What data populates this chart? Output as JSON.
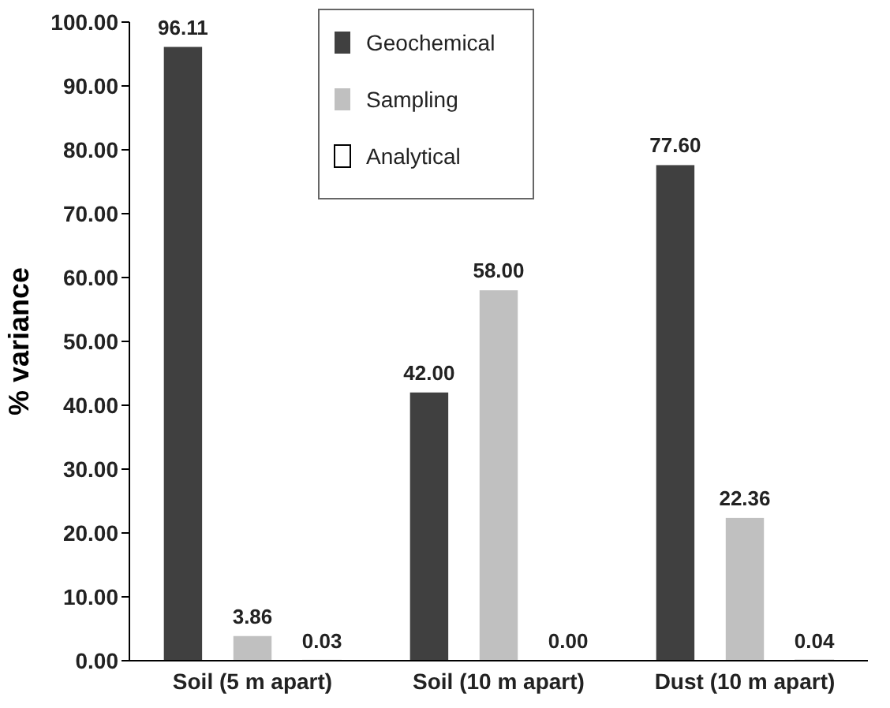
{
  "chart_data": {
    "type": "bar",
    "ylabel": "% variance",
    "categories": [
      "Soil (5 m apart)",
      "Soil (10 m apart)",
      "Dust (10 m apart)"
    ],
    "series": [
      {
        "name": "Geochemical",
        "color": "#404040",
        "values": [
          96.11,
          42.0,
          77.6
        ],
        "value_labels": [
          "96.11",
          "42.00",
          "77.60"
        ]
      },
      {
        "name": "Sampling",
        "color": "#c0c0c0",
        "values": [
          3.86,
          58.0,
          22.36
        ],
        "value_labels": [
          "3.86",
          "58.00",
          "22.36"
        ]
      },
      {
        "name": "Analytical",
        "color": "#ffffff",
        "values": [
          0.03,
          0.0,
          0.04
        ],
        "value_labels": [
          "0.03",
          "0.00",
          "0.04"
        ]
      }
    ],
    "ylim": [
      0,
      100
    ],
    "yticks": [
      {
        "value": 0,
        "label": "0.00"
      },
      {
        "value": 10,
        "label": "10.00"
      },
      {
        "value": 20,
        "label": "20.00"
      },
      {
        "value": 30,
        "label": "30.00"
      },
      {
        "value": 40,
        "label": "40.00"
      },
      {
        "value": 50,
        "label": "50.00"
      },
      {
        "value": 60,
        "label": "60.00"
      },
      {
        "value": 70,
        "label": "70.00"
      },
      {
        "value": 80,
        "label": "80.00"
      },
      {
        "value": 90,
        "label": "90.00"
      },
      {
        "value": 100,
        "label": "100.00"
      }
    ],
    "grid": false,
    "legend": "top"
  }
}
